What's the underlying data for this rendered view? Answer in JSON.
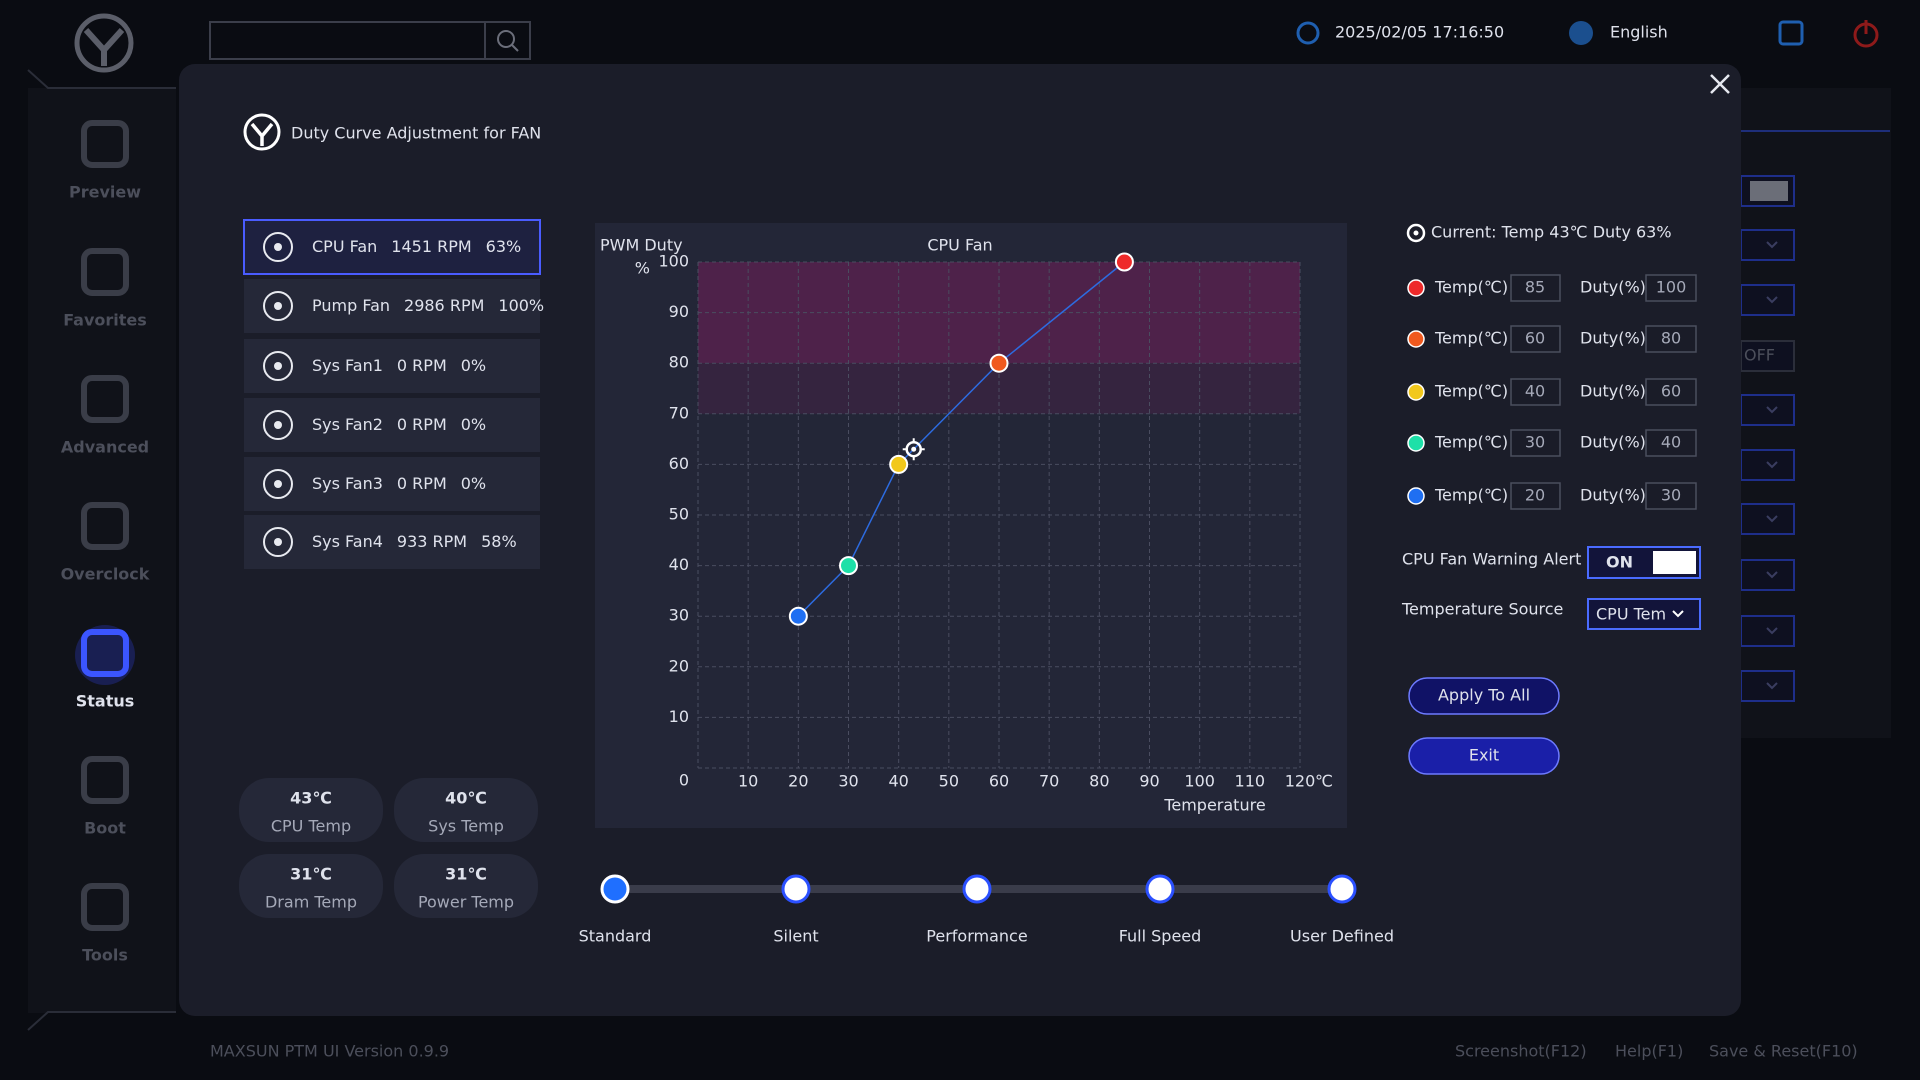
{
  "topbar": {
    "datetime": "2025/02/05 17:16:50",
    "language": "English"
  },
  "sidebar": {
    "items": [
      "Preview",
      "Favorites",
      "Advanced",
      "Overclock",
      "Status",
      "Boot",
      "Tools"
    ],
    "active": 4
  },
  "background": {
    "off_label": "OFF"
  },
  "dialog": {
    "title": "Duty Curve Adjustment for FAN",
    "fans": [
      {
        "name": "CPU Fan",
        "rpm": "1451 RPM",
        "duty": "63%"
      },
      {
        "name": "Pump Fan",
        "rpm": "2986 RPM",
        "duty": "100%"
      },
      {
        "name": "Sys Fan1",
        "rpm": "0 RPM",
        "duty": "0%"
      },
      {
        "name": "Sys Fan2",
        "rpm": "0 RPM",
        "duty": "0%"
      },
      {
        "name": "Sys Fan3",
        "rpm": "0 RPM",
        "duty": "0%"
      },
      {
        "name": "Sys Fan4",
        "rpm": "933 RPM",
        "duty": "58%"
      }
    ],
    "selected_fan": 0,
    "temps": [
      {
        "value": "43℃",
        "label": "CPU Temp"
      },
      {
        "value": "40℃",
        "label": "Sys Temp"
      },
      {
        "value": "31℃",
        "label": "Dram Temp"
      },
      {
        "value": "31℃",
        "label": "Power Temp"
      }
    ],
    "current": "Current: Temp 43℃  Duty 63%",
    "temp_label": "Temp(℃)",
    "duty_label": "Duty(%)",
    "warning_label": "CPU Fan Warning Alert",
    "warning_state": "ON",
    "source_label": "Temperature Source",
    "source_value": "CPU Tem",
    "buttons": [
      "Apply To All",
      "Exit"
    ],
    "modes": [
      "Standard",
      "Silent",
      "Performance",
      "Full Speed",
      "User Defined"
    ],
    "selected_mode": 0
  },
  "footer": {
    "version": "MAXSUN PTM UI Version 0.9.9",
    "links": [
      "Screenshot(F12)",
      "Help(F1)",
      "Save & Reset(F10)"
    ]
  },
  "chart_data": {
    "type": "line",
    "title": "CPU Fan",
    "y_label": "PWM Duty",
    "y_unit": "%",
    "x_label": "Temperature",
    "x_unit": "℃",
    "x": [
      20,
      30,
      40,
      60,
      85
    ],
    "values": [
      30,
      40,
      60,
      80,
      100
    ],
    "color": "#2d6be0",
    "point_colors": [
      "#1f6ff2",
      "#1de0a8",
      "#f2c81b",
      "#f0591e",
      "#ee2a2a"
    ],
    "xlim": [
      0,
      120
    ],
    "ylim": [
      0,
      100
    ],
    "xticks": [
      10,
      20,
      30,
      40,
      50,
      60,
      70,
      80,
      90,
      100,
      110,
      120
    ],
    "yticks": [
      0,
      10,
      20,
      30,
      40,
      50,
      60,
      70,
      80,
      90,
      100
    ],
    "grid": true,
    "zones": [
      {
        "from": 80,
        "to": 100,
        "color": "rgba(150,30,105,0.38)"
      },
      {
        "from": 70,
        "to": 80,
        "color": "rgba(120,30,95,0.22)"
      }
    ],
    "current": {
      "x": 43,
      "y": 63
    }
  }
}
